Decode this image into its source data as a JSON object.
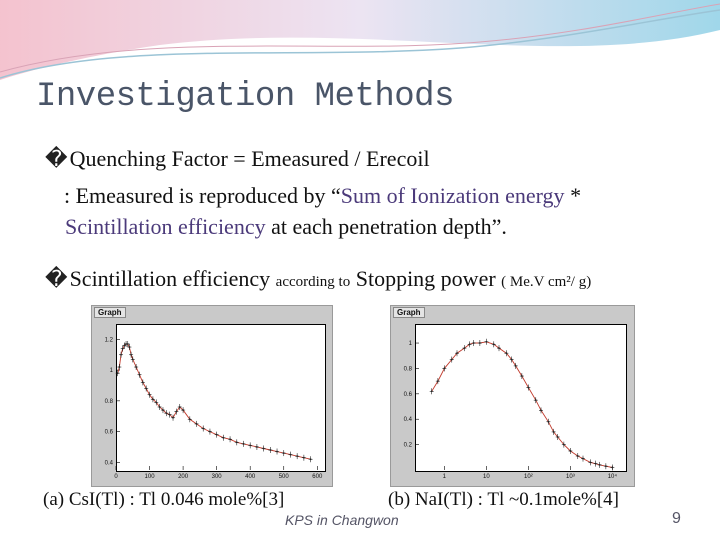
{
  "slide": {
    "title": "Investigation Methods",
    "bullet_glyph": "�",
    "line1": "Quenching Factor =  Emeasured / Erecoil",
    "line2_a": " : Emeasured is reproduced by “",
    "line2_b": "Sum of Ionization energy",
    "line2_c": " *",
    "line3_a": "Scintillation efficiency",
    "line3_b": " at each penetration depth”.",
    "line4_a": "Scintillation efficiency ",
    "line4_b": "according to",
    "line4_c": " Stopping power ",
    "line4_d": "( Me.V  cm²/ g)",
    "caption_a": "(a) CsI(Tl) : Tl 0.046 mole%[3]",
    "caption_b": "(b) NaI(Tl) : Tl ~0.1mole%[4]",
    "footer": "KPS in Changwon",
    "page_number": "9",
    "accent_color": "#4b3a7a"
  },
  "chart_data": [
    {
      "type": "scatter",
      "panel_label": "Graph",
      "x_ticks": [
        "0",
        "100",
        "200",
        "300",
        "400",
        "500",
        "600"
      ],
      "y_ticks": [
        "0.4",
        "0.6",
        "0.8",
        "1",
        "1.2"
      ],
      "xlim": [
        0,
        620
      ],
      "ylim": [
        0.35,
        1.3
      ],
      "x": [
        5,
        10,
        15,
        20,
        25,
        30,
        35,
        40,
        45,
        50,
        60,
        70,
        80,
        90,
        100,
        110,
        120,
        130,
        140,
        150,
        160,
        170,
        180,
        190,
        200,
        220,
        240,
        260,
        280,
        300,
        320,
        340,
        360,
        380,
        400,
        420,
        440,
        460,
        480,
        500,
        520,
        540,
        560,
        580
      ],
      "y": [
        0.98,
        1.02,
        1.1,
        1.14,
        1.16,
        1.17,
        1.17,
        1.15,
        1.1,
        1.07,
        1.02,
        0.97,
        0.92,
        0.88,
        0.84,
        0.81,
        0.79,
        0.76,
        0.74,
        0.72,
        0.71,
        0.69,
        0.73,
        0.76,
        0.74,
        0.68,
        0.65,
        0.62,
        0.6,
        0.58,
        0.56,
        0.55,
        0.53,
        0.52,
        0.51,
        0.5,
        0.49,
        0.48,
        0.47,
        0.46,
        0.45,
        0.44,
        0.43,
        0.42
      ]
    },
    {
      "type": "scatter",
      "panel_label": "Graph",
      "log_x": true,
      "x_ticks": [
        "1",
        "10",
        "10²",
        "10³",
        "10⁴"
      ],
      "y_ticks": [
        "0.2",
        "0.4",
        "0.6",
        "0.8",
        "1"
      ],
      "xlim": [
        0.2,
        20000
      ],
      "ylim": [
        0,
        1.15
      ],
      "x": [
        0.5,
        0.7,
        1,
        1.5,
        2,
        3,
        4,
        5,
        7,
        10,
        15,
        20,
        30,
        40,
        50,
        70,
        100,
        150,
        200,
        300,
        400,
        500,
        700,
        1000,
        1500,
        2000,
        3000,
        4000,
        5000,
        7000,
        10000
      ],
      "y": [
        0.62,
        0.7,
        0.8,
        0.87,
        0.92,
        0.96,
        0.99,
        1.0,
        1.0,
        1.01,
        0.99,
        0.96,
        0.92,
        0.87,
        0.82,
        0.74,
        0.65,
        0.55,
        0.47,
        0.38,
        0.3,
        0.26,
        0.2,
        0.15,
        0.11,
        0.09,
        0.06,
        0.05,
        0.04,
        0.03,
        0.02
      ]
    }
  ]
}
